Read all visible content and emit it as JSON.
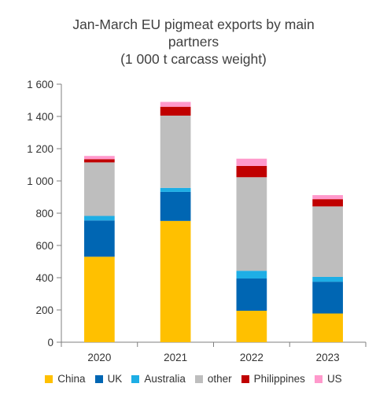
{
  "chart_data": {
    "type": "bar",
    "stacked": true,
    "title_lines": [
      "Jan-March EU pigmeat exports by main",
      "partners",
      "(1 000 t carcass weight)"
    ],
    "categories": [
      "2020",
      "2021",
      "2022",
      "2023"
    ],
    "ylim": [
      0,
      1600
    ],
    "yticks": [
      0,
      200,
      400,
      600,
      800,
      1000,
      1200,
      1400,
      1600
    ],
    "ytick_labels": [
      "0",
      "200",
      "400",
      "600",
      "800",
      "1 000",
      "1 200",
      "1 400",
      "1 600"
    ],
    "grid": false,
    "legend_position": "bottom",
    "series": [
      {
        "name": "China",
        "color": "#FFC000",
        "values": [
          530,
          752,
          195,
          178
        ]
      },
      {
        "name": "UK",
        "color": "#0066B3",
        "values": [
          225,
          180,
          200,
          197
        ]
      },
      {
        "name": "Australia",
        "color": "#1EAEE5",
        "values": [
          28,
          25,
          48,
          30
        ]
      },
      {
        "name": "other",
        "color": "#BEBEBE",
        "values": [
          332,
          448,
          580,
          437
        ]
      },
      {
        "name": "Philippines",
        "color": "#C00000",
        "values": [
          20,
          55,
          70,
          45
        ]
      },
      {
        "name": "US",
        "color": "#FF99CC",
        "values": [
          20,
          30,
          45,
          25
        ]
      }
    ]
  }
}
